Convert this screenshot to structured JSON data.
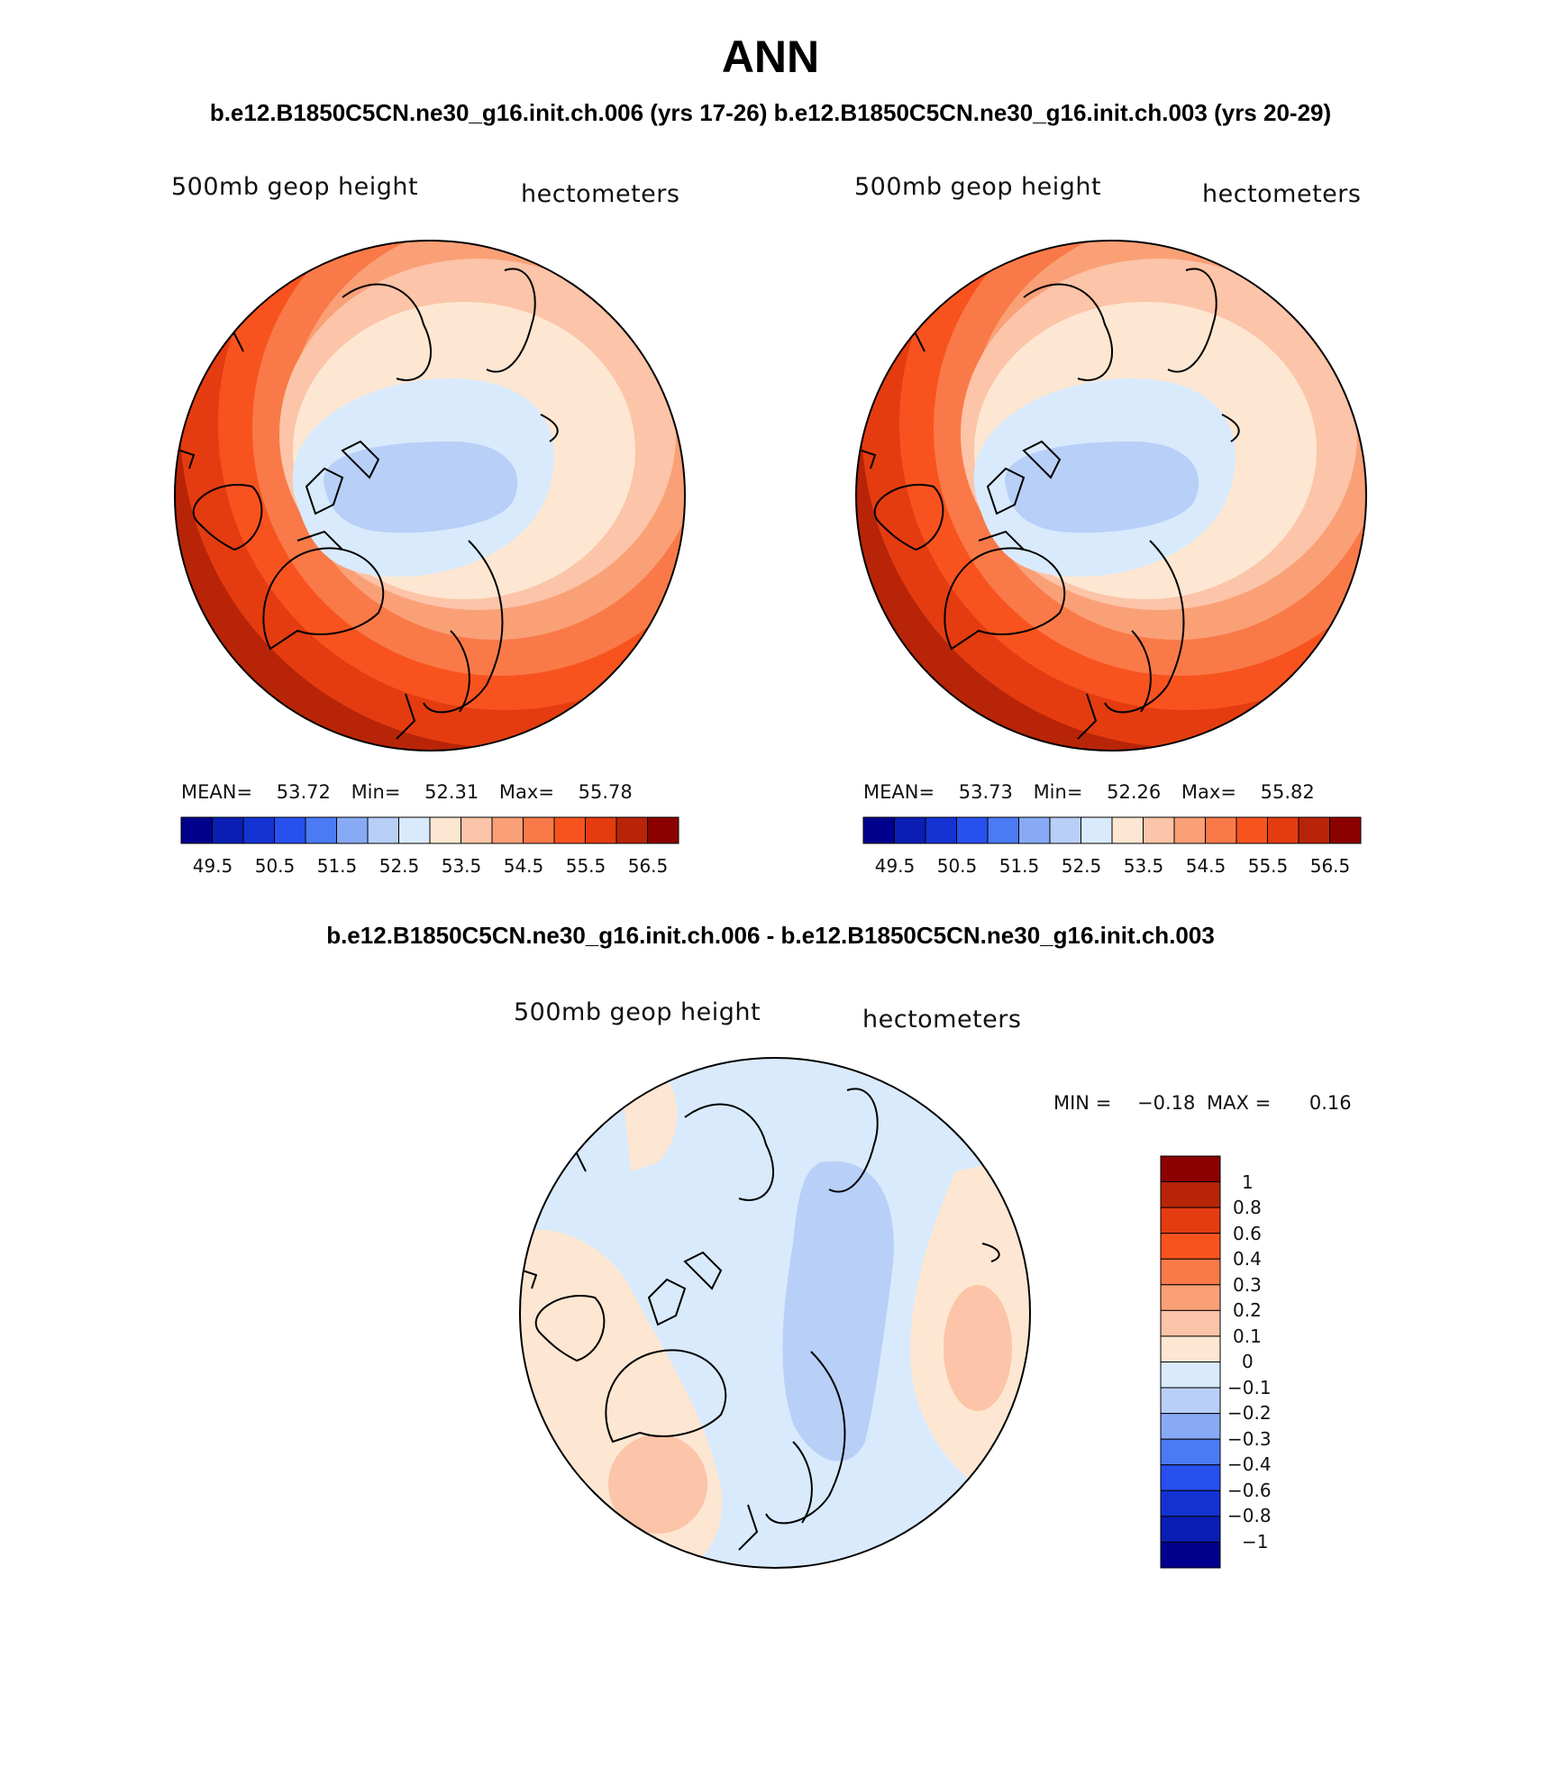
{
  "figure": {
    "title": "ANN",
    "subtitle_left": "b.e12.B1850C5CN.ne30_g16.init.ch.006 (yrs 17-26)",
    "subtitle_right": "b.e12.B1850C5CN.ne30_g16.init.ch.003 (yrs 20-29)",
    "diff_title": "b.e12.B1850C5CN.ne30_g16.init.ch.006 - b.e12.B1850C5CN.ne30_g16.init.ch.003"
  },
  "panels": [
    {
      "variable": "500mb geop height",
      "units": "hectometers",
      "mean_label": "MEAN=",
      "mean": "53.72",
      "min_label": "Min=",
      "min": "52.31",
      "max_label": "Max=",
      "max": "55.78",
      "colorbar_ticks": [
        "49.5",
        "50.5",
        "51.5",
        "52.5",
        "53.5",
        "54.5",
        "55.5",
        "56.5"
      ]
    },
    {
      "variable": "500mb geop height",
      "units": "hectometers",
      "mean_label": "MEAN=",
      "mean": "53.73",
      "min_label": "Min=",
      "min": "52.26",
      "max_label": "Max=",
      "max": "55.82",
      "colorbar_ticks": [
        "49.5",
        "50.5",
        "51.5",
        "52.5",
        "53.5",
        "54.5",
        "55.5",
        "56.5"
      ]
    }
  ],
  "difference": {
    "variable": "500mb geop height",
    "units": "hectometers",
    "min_label": "MIN =",
    "min": "−0.18",
    "max_label": "MAX =",
    "max": "0.16",
    "colorbar_ticks": [
      "1",
      "0.8",
      "0.6",
      "0.4",
      "0.3",
      "0.2",
      "0.1",
      "0",
      "−0.1",
      "−0.2",
      "−0.3",
      "−0.4",
      "−0.6",
      "−0.8",
      "−1"
    ]
  },
  "colors": {
    "main_scale": [
      "#00008c",
      "#0a1eb4",
      "#1432d2",
      "#2850ee",
      "#4a7bf4",
      "#88aaf6",
      "#b8cff8",
      "#d9eafc",
      "#fde7d2",
      "#fcc4a8",
      "#faa077",
      "#f97a48",
      "#f8531f",
      "#e43c10",
      "#b82408",
      "#8c0000"
    ],
    "diff_scale_top_to_bottom": [
      "#8c0000",
      "#b82408",
      "#e43c10",
      "#f8531f",
      "#f97a48",
      "#faa077",
      "#fcc4a8",
      "#fde7d2",
      "#d9eafc",
      "#b8cff8",
      "#88aaf6",
      "#4a7bf4",
      "#2850ee",
      "#1432d2",
      "#0a1eb4",
      "#00008c"
    ]
  }
}
